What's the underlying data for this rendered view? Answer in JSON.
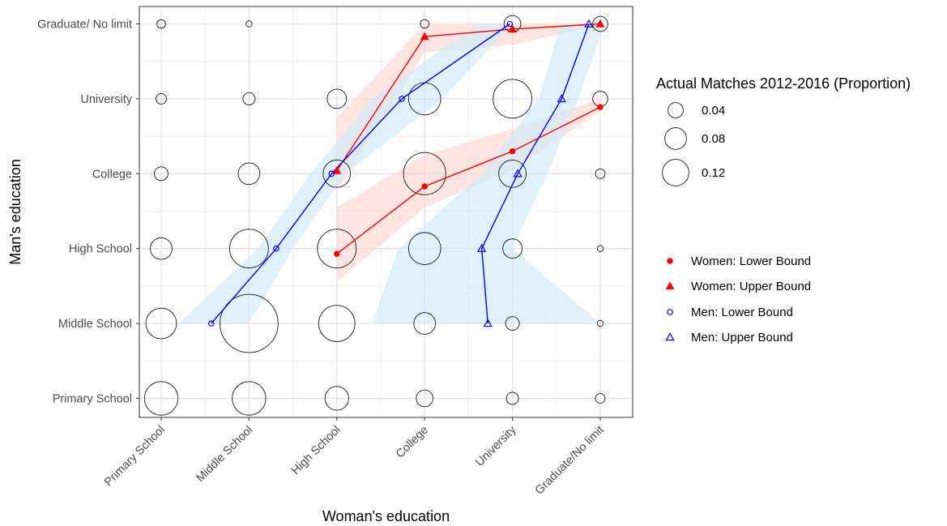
{
  "chart_data": {
    "type": "scatter",
    "xlabel": "Woman's education",
    "ylabel": "Man's education",
    "x_categories": [
      "Primary School",
      "Middle School",
      "High School",
      "College",
      "University",
      "Graduate/No limit"
    ],
    "y_categories": [
      "Primary School",
      "Middle School",
      "High School",
      "College",
      "University",
      "Graduate/ No limit"
    ],
    "grid": true,
    "legend_position": "right",
    "bubbles": {
      "legend_title": "Actual Matches 2012-2016 (Proportion)",
      "legend_sizes": [
        {
          "value": 0.04,
          "label": "0.04"
        },
        {
          "value": 0.08,
          "label": "0.08"
        },
        {
          "value": 0.12,
          "label": "0.12"
        }
      ],
      "points": [
        {
          "x": 1,
          "y": 1,
          "value": 0.06
        },
        {
          "x": 2,
          "y": 1,
          "value": 0.06
        },
        {
          "x": 3,
          "y": 1,
          "value": 0.03
        },
        {
          "x": 4,
          "y": 1,
          "value": 0.015
        },
        {
          "x": 5,
          "y": 1,
          "value": 0.008
        },
        {
          "x": 6,
          "y": 1,
          "value": 0.005
        },
        {
          "x": 1,
          "y": 2,
          "value": 0.05
        },
        {
          "x": 2,
          "y": 2,
          "value": 0.18
        },
        {
          "x": 3,
          "y": 2,
          "value": 0.07
        },
        {
          "x": 4,
          "y": 2,
          "value": 0.025
        },
        {
          "x": 5,
          "y": 2,
          "value": 0.01
        },
        {
          "x": 6,
          "y": 2,
          "value": 0.002
        },
        {
          "x": 1,
          "y": 3,
          "value": 0.025
        },
        {
          "x": 2,
          "y": 3,
          "value": 0.08
        },
        {
          "x": 3,
          "y": 3,
          "value": 0.08
        },
        {
          "x": 4,
          "y": 3,
          "value": 0.055
        },
        {
          "x": 5,
          "y": 3,
          "value": 0.02
        },
        {
          "x": 6,
          "y": 3,
          "value": 0.002
        },
        {
          "x": 1,
          "y": 4,
          "value": 0.01
        },
        {
          "x": 2,
          "y": 4,
          "value": 0.025
        },
        {
          "x": 3,
          "y": 4,
          "value": 0.04
        },
        {
          "x": 4,
          "y": 4,
          "value": 0.095
        },
        {
          "x": 5,
          "y": 4,
          "value": 0.04
        },
        {
          "x": 6,
          "y": 4,
          "value": 0.005
        },
        {
          "x": 1,
          "y": 5,
          "value": 0.006
        },
        {
          "x": 2,
          "y": 5,
          "value": 0.008
        },
        {
          "x": 3,
          "y": 5,
          "value": 0.02
        },
        {
          "x": 4,
          "y": 5,
          "value": 0.055
        },
        {
          "x": 5,
          "y": 5,
          "value": 0.08
        },
        {
          "x": 6,
          "y": 5,
          "value": 0.012
        },
        {
          "x": 1,
          "y": 6,
          "value": 0.004
        },
        {
          "x": 2,
          "y": 6,
          "value": 0.002
        },
        {
          "x": 4,
          "y": 6,
          "value": 0.004
        },
        {
          "x": 5,
          "y": 6,
          "value": 0.015
        },
        {
          "x": 6,
          "y": 6,
          "value": 0.012
        }
      ]
    },
    "series": [
      {
        "name": "Women: Lower Bound",
        "color": "#ff0000",
        "marker": "filled-circle",
        "points": [
          {
            "x": 3,
            "y": 2.93
          },
          {
            "x": 4,
            "y": 3.83
          },
          {
            "x": 5,
            "y": 4.3
          },
          {
            "x": 6,
            "y": 4.89
          }
        ],
        "ribbon_lower": [
          2.55,
          3.55,
          4.05,
          4.83
        ],
        "ribbon_upper": [
          3.55,
          4.25,
          4.6,
          5.0
        ]
      },
      {
        "name": "Women: Upper Bound",
        "color": "#ff0000",
        "marker": "filled-triangle",
        "points": [
          {
            "x": 3,
            "y": 4.04
          },
          {
            "x": 4,
            "y": 5.83
          },
          {
            "x": 5,
            "y": 5.93
          },
          {
            "x": 6,
            "y": 6.0
          }
        ],
        "ribbon_lower": [
          3.78,
          5.62,
          5.72,
          5.98
        ],
        "ribbon_upper": [
          4.75,
          6.0,
          6.0,
          6.0
        ]
      },
      {
        "name": "Men: Lower Bound",
        "color": "#0000ff",
        "marker": "open-circle",
        "points": [
          {
            "x": 1.57,
            "y": 2
          },
          {
            "x": 2.31,
            "y": 3
          },
          {
            "x": 2.94,
            "y": 4
          },
          {
            "x": 3.74,
            "y": 5
          },
          {
            "x": 4.97,
            "y": 6
          }
        ],
        "ribbon_lower": [
          {
            "x": 1.2,
            "y": 2
          },
          {
            "x": 2.1,
            "y": 3
          },
          {
            "x": 2.7,
            "y": 4
          },
          {
            "x": 3.4,
            "y": 5
          },
          {
            "x": 4.6,
            "y": 6
          }
        ],
        "ribbon_upper": [
          {
            "x": 2.0,
            "y": 2
          },
          {
            "x": 2.5,
            "y": 3
          },
          {
            "x": 3.1,
            "y": 4
          },
          {
            "x": 4.2,
            "y": 5
          },
          {
            "x": 5.0,
            "y": 6
          }
        ]
      },
      {
        "name": "Men: Upper Bound",
        "color": "#0000ff",
        "marker": "open-triangle",
        "points": [
          {
            "x": 4.72,
            "y": 2
          },
          {
            "x": 4.65,
            "y": 3
          },
          {
            "x": 5.06,
            "y": 4
          },
          {
            "x": 5.56,
            "y": 5
          },
          {
            "x": 5.87,
            "y": 6
          }
        ],
        "ribbon_lower": [
          {
            "x": 3.4,
            "y": 2
          },
          {
            "x": 3.7,
            "y": 3
          },
          {
            "x": 4.65,
            "y": 4
          },
          {
            "x": 5.3,
            "y": 5
          },
          {
            "x": 5.55,
            "y": 6
          }
        ],
        "ribbon_upper": [
          {
            "x": 6.0,
            "y": 2
          },
          {
            "x": 5.0,
            "y": 3
          },
          {
            "x": 5.4,
            "y": 4
          },
          {
            "x": 5.75,
            "y": 5
          },
          {
            "x": 6.05,
            "y": 6
          }
        ]
      }
    ]
  }
}
